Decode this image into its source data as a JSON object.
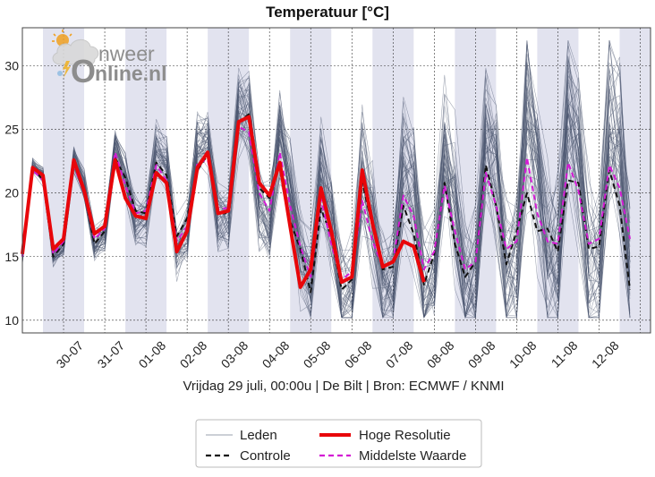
{
  "chart_data": {
    "type": "line",
    "title": "Temperatuur [°C]",
    "subtitle": "Vrijdag 29 juli, 00:00u  | De Bilt | Bron: ECMWF / KNMI",
    "ylim": [
      9,
      33
    ],
    "yticks": [
      10,
      15,
      20,
      25,
      30
    ],
    "x_start_label": "29-07",
    "x_days": 15.25,
    "x_step_hours": 6,
    "date_labels": [
      "30-07",
      "31-07",
      "01-08",
      "02-08",
      "03-08",
      "04-08",
      "05-08",
      "06-08",
      "07-08",
      "08-08",
      "09-08",
      "10-08",
      "11-08",
      "12-08"
    ],
    "grid": true,
    "shaded_bands": true,
    "legend_position": "bottom-center",
    "logo": {
      "text_top": "nweer",
      "text_bottom": "nline.nl",
      "initial": "O"
    },
    "legend": {
      "members": "Leden",
      "hires": "Hoge Resolutie",
      "control": "Controle",
      "median": "Middelste Waarde"
    },
    "colors": {
      "members": "#4a5670",
      "hires": "#e8060a",
      "control": "#111111",
      "median": "#d41ad4",
      "band": "#e2e3ef",
      "grid": "#333333"
    },
    "series": [
      {
        "name": "Hoge Resolutie",
        "values": [
          15.2,
          22.0,
          21.4,
          15.6,
          16.4,
          22.6,
          20.2,
          16.8,
          17.4,
          22.6,
          19.6,
          18.2,
          18.0,
          21.6,
          20.8,
          15.4,
          17.0,
          22.0,
          23.2,
          18.4,
          18.6,
          25.6,
          26.0,
          20.8,
          19.8,
          22.4,
          17.4,
          12.6,
          14.0,
          20.4,
          17.0,
          13.0,
          13.4,
          21.8,
          17.6,
          14.2,
          14.6,
          16.2,
          15.8,
          13.0
        ]
      },
      {
        "name": "Controle",
        "values": [
          15.0,
          22.0,
          21.0,
          15.0,
          16.0,
          22.4,
          20.2,
          16.0,
          17.0,
          22.8,
          21.2,
          18.6,
          18.4,
          22.4,
          21.4,
          16.6,
          18.0,
          21.8,
          23.0,
          18.4,
          18.4,
          25.6,
          26.2,
          20.4,
          19.6,
          22.6,
          17.8,
          15.6,
          12.2,
          18.8,
          16.6,
          12.4,
          13.2,
          20.8,
          17.4,
          14.0,
          14.2,
          19.0,
          16.8,
          12.8,
          15.2,
          20.8,
          16.0,
          13.4,
          14.6,
          22.2,
          19.0,
          14.4,
          17.0,
          20.0,
          17.0,
          17.2,
          15.4,
          21.0,
          20.8,
          15.6,
          15.8,
          21.8,
          19.0,
          12.4
        ]
      },
      {
        "name": "Middelste Waarde",
        "values": [
          15.0,
          21.8,
          21.0,
          15.2,
          16.2,
          22.2,
          20.0,
          16.4,
          17.2,
          23.2,
          20.6,
          18.4,
          18.6,
          22.2,
          21.0,
          16.2,
          17.4,
          22.4,
          22.6,
          18.8,
          18.8,
          25.2,
          24.8,
          20.0,
          18.6,
          23.2,
          19.0,
          15.8,
          13.4,
          19.6,
          16.0,
          13.2,
          13.8,
          19.4,
          16.2,
          14.2,
          14.6,
          19.8,
          18.2,
          14.0,
          15.4,
          20.6,
          17.0,
          14.0,
          14.6,
          21.6,
          19.0,
          15.6,
          16.2,
          22.8,
          18.4,
          16.2,
          16.0,
          22.4,
          20.2,
          16.0,
          16.4,
          22.2,
          20.4,
          16.4
        ]
      }
    ]
  }
}
